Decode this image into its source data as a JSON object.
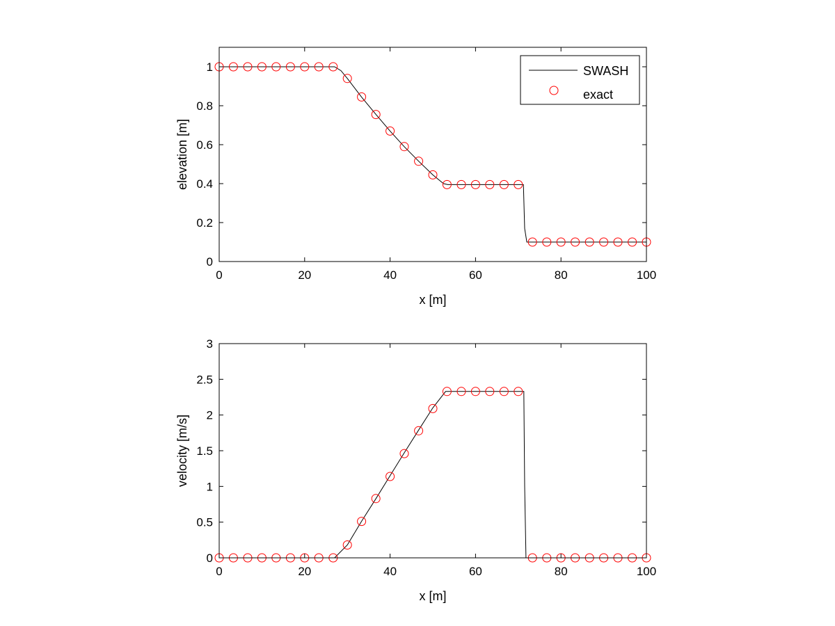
{
  "chart_data": [
    {
      "type": "line",
      "xlabel": "x [m]",
      "ylabel": "elevation [m]",
      "xlim": [
        0,
        100
      ],
      "ylim": [
        0,
        1.1
      ],
      "xticks": [
        0,
        20,
        40,
        60,
        80,
        100
      ],
      "yticks": [
        0,
        0.2,
        0.4,
        0.6,
        0.8,
        1
      ],
      "ytick_labels": [
        "0",
        "0.2",
        "0.4",
        "0.6",
        "0.8",
        "1"
      ],
      "grid": false,
      "legend": {
        "placement": "top-right",
        "entries": [
          "SWASH",
          "exact"
        ]
      },
      "series": [
        {
          "name": "SWASH",
          "style": "line",
          "color": "#000000",
          "x": [
            0,
            27.0,
            28.5,
            30,
            33.3,
            36.7,
            40,
            43.3,
            46.7,
            50,
            52.5,
            53.5,
            71.2,
            71.5,
            72.0,
            73.3,
            100
          ],
          "y": [
            1.0,
            1.0,
            0.98,
            0.94,
            0.845,
            0.755,
            0.67,
            0.59,
            0.515,
            0.445,
            0.4,
            0.395,
            0.395,
            0.17,
            0.1,
            0.1,
            0.1
          ]
        },
        {
          "name": "exact",
          "style": "markers",
          "marker": "circle",
          "color": "#ff0000",
          "x": [
            0,
            3.33,
            6.67,
            10,
            13.33,
            16.67,
            20,
            23.33,
            26.67,
            30,
            33.33,
            36.67,
            40,
            43.33,
            46.67,
            50,
            53.33,
            56.67,
            60,
            63.33,
            66.67,
            70,
            73.33,
            76.67,
            80,
            83.33,
            86.67,
            90,
            93.33,
            96.67,
            100
          ],
          "y": [
            1,
            1,
            1,
            1,
            1,
            1,
            1,
            1,
            1,
            0.94,
            0.845,
            0.755,
            0.67,
            0.59,
            0.515,
            0.445,
            0.395,
            0.395,
            0.395,
            0.395,
            0.395,
            0.395,
            0.1,
            0.1,
            0.1,
            0.1,
            0.1,
            0.1,
            0.1,
            0.1,
            0.1
          ]
        }
      ]
    },
    {
      "type": "line",
      "xlabel": "x [m]",
      "ylabel": "velocity [m/s]",
      "xlim": [
        0,
        100
      ],
      "ylim": [
        0,
        3
      ],
      "xticks": [
        0,
        20,
        40,
        60,
        80,
        100
      ],
      "yticks": [
        0,
        0.5,
        1,
        1.5,
        2,
        2.5,
        3
      ],
      "ytick_labels": [
        "0",
        "0.5",
        "1",
        "1.5",
        "2",
        "2.5",
        "3"
      ],
      "grid": false,
      "series": [
        {
          "name": "SWASH",
          "style": "line",
          "color": "#000000",
          "x": [
            0,
            27.0,
            30,
            33.3,
            36.7,
            40,
            43.3,
            46.7,
            50,
            53.0,
            53.5,
            71.3,
            71.5,
            71.8,
            100
          ],
          "y": [
            0,
            0,
            0.18,
            0.51,
            0.83,
            1.15,
            1.47,
            1.79,
            2.1,
            2.33,
            2.33,
            2.33,
            1.0,
            0,
            0
          ]
        },
        {
          "name": "exact",
          "style": "markers",
          "marker": "circle",
          "color": "#ff0000",
          "x": [
            0,
            3.33,
            6.67,
            10,
            13.33,
            16.67,
            20,
            23.33,
            26.67,
            30,
            33.33,
            36.67,
            40,
            43.33,
            46.67,
            50,
            53.33,
            56.67,
            60,
            63.33,
            66.67,
            70,
            73.33,
            76.67,
            80,
            83.33,
            86.67,
            90,
            93.33,
            96.67,
            100
          ],
          "y": [
            0,
            0,
            0,
            0,
            0,
            0,
            0,
            0,
            0,
            0.18,
            0.51,
            0.83,
            1.14,
            1.46,
            1.78,
            2.09,
            2.33,
            2.33,
            2.33,
            2.33,
            2.33,
            2.33,
            0,
            0,
            0,
            0,
            0,
            0,
            0,
            0,
            0
          ]
        }
      ]
    }
  ]
}
